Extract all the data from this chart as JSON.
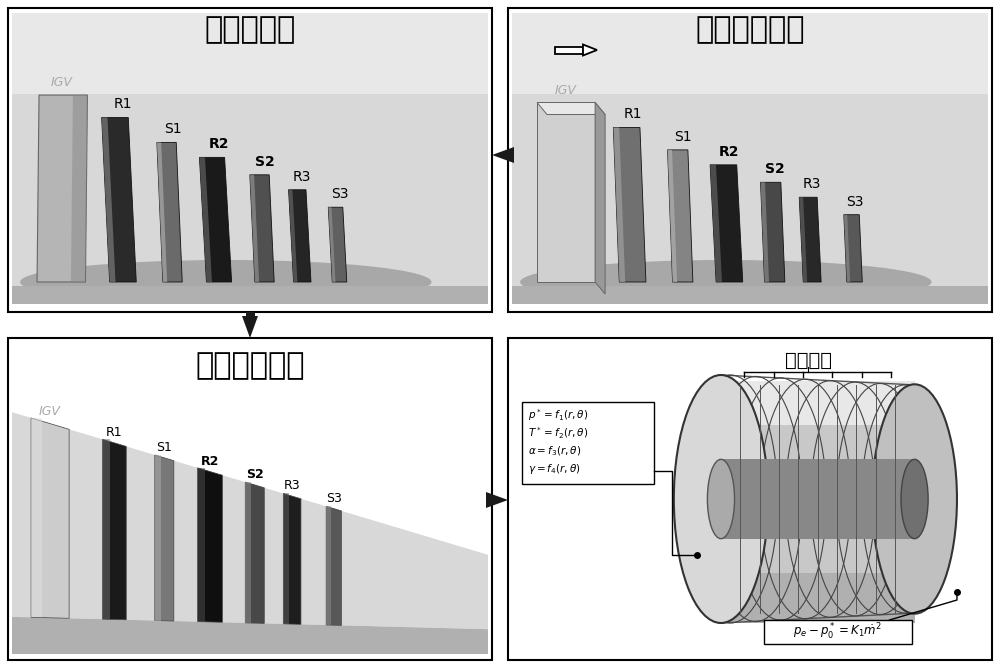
{
  "background_color": "#ffffff",
  "panel_titles": {
    "top_left": "三维中弧面",
    "top_right": "三维几何叶型",
    "bottom_left": "子午基元流道",
    "blade_region": "叶片区域"
  },
  "eq_texts": [
    "p* = f₁(r,θ)",
    "T* = f₂(r,θ)",
    "α = f₃(r,θ)",
    "γ = f₄(r,θ)"
  ],
  "bot_eq": "pₑ - p₀* = K₁ṁ²",
  "blade_names": [
    "IGV",
    "R1",
    "S1",
    "R2",
    "S2",
    "R3",
    "S3"
  ],
  "font_title": 22,
  "font_label": 10,
  "font_eq": 8,
  "panels": {
    "tl": [
      8,
      8,
      484,
      304
    ],
    "tr": [
      508,
      8,
      484,
      304
    ],
    "bl": [
      8,
      338,
      484,
      322
    ],
    "br": [
      508,
      338,
      484,
      322
    ]
  }
}
